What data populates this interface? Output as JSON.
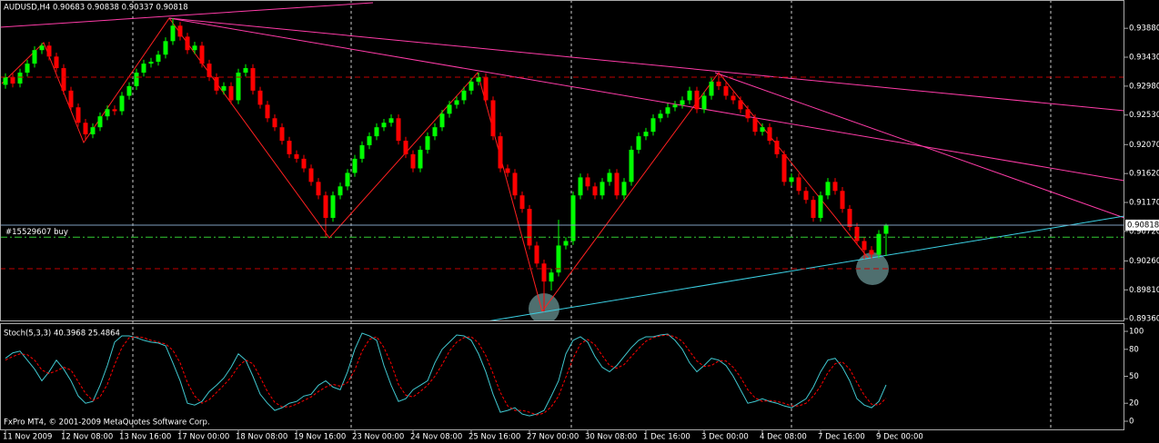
{
  "chart_data": [
    {
      "type": "candlestick",
      "title": "AUDUSD,H4  0.90683 0.90838 0.90337 0.90818",
      "up_color": "#00ff00",
      "down_color": "#ff0000",
      "categories": [
        "11 Nov 2009",
        null,
        null,
        null,
        null,
        null,
        null,
        null,
        "12 Nov 08:00",
        null,
        null,
        null,
        null,
        null,
        null,
        null,
        "13 Nov 16:00",
        null,
        null,
        null,
        null,
        null,
        null,
        null,
        "17 Nov 00:00",
        null,
        null,
        null,
        null,
        null,
        null,
        null,
        "18 Nov 08:00",
        null,
        null,
        null,
        null,
        null,
        null,
        null,
        "19 Nov 16:00",
        null,
        null,
        null,
        null,
        null,
        null,
        null,
        "23 Nov 00:00",
        null,
        null,
        null,
        null,
        null,
        null,
        null,
        "24 Nov 08:00",
        null,
        null,
        null,
        null,
        null,
        null,
        null,
        "25 Nov 16:00",
        null,
        null,
        null,
        null,
        null,
        null,
        null,
        "27 Nov 00:00",
        null,
        null,
        null,
        null,
        null,
        null,
        null,
        "30 Nov 08:00",
        null,
        null,
        null,
        null,
        null,
        null,
        null,
        "1 Dec 16:00",
        null,
        null,
        null,
        null,
        null,
        null,
        null,
        "3 Dec 00:00",
        null,
        null,
        null,
        null,
        null,
        null,
        null,
        "4 Dec 08:00",
        null,
        null,
        null,
        null,
        null,
        null,
        null,
        "7 Dec 16:00",
        null,
        null,
        null,
        null,
        null,
        null,
        null,
        "9 Dec 00:00",
        null
      ],
      "values": [
        [
          0.93,
          0.9318,
          0.9294,
          0.9312
        ],
        [
          0.9312,
          0.9318,
          0.9296,
          0.9302
        ],
        [
          0.9302,
          0.9325,
          0.9296,
          0.9319
        ],
        [
          0.9319,
          0.9339,
          0.9313,
          0.9333
        ],
        [
          0.9333,
          0.936,
          0.9327,
          0.9354
        ],
        [
          0.9354,
          0.9365,
          0.9348,
          0.9361
        ],
        [
          0.9361,
          0.9367,
          0.9338,
          0.9344
        ],
        [
          0.9344,
          0.935,
          0.932,
          0.9326
        ],
        [
          0.9326,
          0.9332,
          0.9285,
          0.9291
        ],
        [
          0.9291,
          0.9297,
          0.9259,
          0.9265
        ],
        [
          0.9265,
          0.9271,
          0.9235,
          0.9241
        ],
        [
          0.9241,
          0.9247,
          0.9213,
          0.9223
        ],
        [
          0.9223,
          0.924,
          0.9217,
          0.9234
        ],
        [
          0.9234,
          0.9257,
          0.9228,
          0.9251
        ],
        [
          0.9251,
          0.9268,
          0.9245,
          0.9262
        ],
        [
          0.9262,
          0.9268,
          0.9253,
          0.9259
        ],
        [
          0.9259,
          0.9289,
          0.9253,
          0.9283
        ],
        [
          0.9283,
          0.9304,
          0.9277,
          0.9298
        ],
        [
          0.9298,
          0.9325,
          0.9292,
          0.9319
        ],
        [
          0.9319,
          0.9339,
          0.9313,
          0.9333
        ],
        [
          0.9333,
          0.9342,
          0.9327,
          0.9336
        ],
        [
          0.9336,
          0.9353,
          0.933,
          0.9347
        ],
        [
          0.9347,
          0.9374,
          0.9341,
          0.9368
        ],
        [
          0.9368,
          0.9404,
          0.9362,
          0.9392
        ],
        [
          0.9392,
          0.9398,
          0.9369,
          0.9375
        ],
        [
          0.9375,
          0.9381,
          0.9348,
          0.9354
        ],
        [
          0.9354,
          0.9367,
          0.9348,
          0.9361
        ],
        [
          0.9361,
          0.9367,
          0.9327,
          0.9333
        ],
        [
          0.9333,
          0.9339,
          0.9306,
          0.9312
        ],
        [
          0.9312,
          0.9318,
          0.9285,
          0.9291
        ],
        [
          0.9291,
          0.9304,
          0.9285,
          0.9298
        ],
        [
          0.9298,
          0.9304,
          0.927,
          0.9276
        ],
        [
          0.9276,
          0.9325,
          0.927,
          0.9319
        ],
        [
          0.9319,
          0.9332,
          0.9313,
          0.9326
        ],
        [
          0.9326,
          0.9332,
          0.9285,
          0.9291
        ],
        [
          0.9291,
          0.9297,
          0.9263,
          0.9269
        ],
        [
          0.9269,
          0.9275,
          0.9242,
          0.9248
        ],
        [
          0.9248,
          0.9254,
          0.9228,
          0.9234
        ],
        [
          0.9234,
          0.924,
          0.9207,
          0.9213
        ],
        [
          0.9213,
          0.9219,
          0.9186,
          0.9192
        ],
        [
          0.9192,
          0.9198,
          0.9179,
          0.9185
        ],
        [
          0.9185,
          0.9191,
          0.9164,
          0.917
        ],
        [
          0.917,
          0.9176,
          0.9143,
          0.9149
        ],
        [
          0.9149,
          0.9155,
          0.9122,
          0.9128
        ],
        [
          0.9128,
          0.9134,
          0.9062,
          0.9093
        ],
        [
          0.9093,
          0.9134,
          0.9087,
          0.9128
        ],
        [
          0.9128,
          0.9148,
          0.9122,
          0.9142
        ],
        [
          0.9142,
          0.9169,
          0.9136,
          0.9163
        ],
        [
          0.9163,
          0.9191,
          0.9157,
          0.9185
        ],
        [
          0.9185,
          0.9212,
          0.9179,
          0.9206
        ],
        [
          0.9206,
          0.9226,
          0.92,
          0.922
        ],
        [
          0.922,
          0.924,
          0.9214,
          0.9234
        ],
        [
          0.9234,
          0.9247,
          0.9228,
          0.9241
        ],
        [
          0.9241,
          0.9254,
          0.9235,
          0.9248
        ],
        [
          0.9248,
          0.9254,
          0.9207,
          0.9213
        ],
        [
          0.9213,
          0.9219,
          0.9186,
          0.9192
        ],
        [
          0.9192,
          0.9198,
          0.9164,
          0.917
        ],
        [
          0.917,
          0.9205,
          0.9164,
          0.9199
        ],
        [
          0.9199,
          0.9226,
          0.9193,
          0.922
        ],
        [
          0.922,
          0.924,
          0.9214,
          0.9234
        ],
        [
          0.9234,
          0.9261,
          0.9228,
          0.9255
        ],
        [
          0.9255,
          0.9275,
          0.9249,
          0.9269
        ],
        [
          0.9269,
          0.9282,
          0.9263,
          0.9276
        ],
        [
          0.9276,
          0.9297,
          0.927,
          0.9291
        ],
        [
          0.9291,
          0.9311,
          0.9285,
          0.9305
        ],
        [
          0.9305,
          0.9319,
          0.9299,
          0.9312
        ],
        [
          0.9312,
          0.9318,
          0.927,
          0.9276
        ],
        [
          0.9276,
          0.9282,
          0.9214,
          0.922
        ],
        [
          0.922,
          0.9226,
          0.9164,
          0.917
        ],
        [
          0.917,
          0.9176,
          0.9157,
          0.9163
        ],
        [
          0.9163,
          0.9169,
          0.9122,
          0.9128
        ],
        [
          0.9128,
          0.9134,
          0.9101,
          0.9107
        ],
        [
          0.9107,
          0.9113,
          0.9044,
          0.905
        ],
        [
          0.905,
          0.9056,
          0.9016,
          0.9022
        ],
        [
          0.9022,
          0.9028,
          0.8947,
          0.8994
        ],
        [
          0.8994,
          0.9014,
          0.898,
          0.9008
        ],
        [
          0.9008,
          0.909,
          0.9002,
          0.905
        ],
        [
          0.905,
          0.9063,
          0.9044,
          0.9057
        ],
        [
          0.9057,
          0.9134,
          0.9051,
          0.9128
        ],
        [
          0.9128,
          0.9162,
          0.9122,
          0.9156
        ],
        [
          0.9156,
          0.9162,
          0.9136,
          0.9142
        ],
        [
          0.9142,
          0.9148,
          0.9122,
          0.9128
        ],
        [
          0.9128,
          0.9155,
          0.9122,
          0.9149
        ],
        [
          0.9149,
          0.9169,
          0.9143,
          0.9163
        ],
        [
          0.9163,
          0.9169,
          0.9122,
          0.9128
        ],
        [
          0.9128,
          0.9155,
          0.9122,
          0.9149
        ],
        [
          0.9149,
          0.9205,
          0.9143,
          0.9199
        ],
        [
          0.9199,
          0.9226,
          0.9193,
          0.922
        ],
        [
          0.922,
          0.9233,
          0.9214,
          0.9227
        ],
        [
          0.9227,
          0.9254,
          0.9221,
          0.9248
        ],
        [
          0.9248,
          0.9261,
          0.9242,
          0.9255
        ],
        [
          0.9255,
          0.9271,
          0.9249,
          0.9265
        ],
        [
          0.9265,
          0.9275,
          0.9259,
          0.9269
        ],
        [
          0.9269,
          0.9282,
          0.9263,
          0.9276
        ],
        [
          0.9276,
          0.9297,
          0.927,
          0.9291
        ],
        [
          0.9291,
          0.9297,
          0.9256,
          0.9262
        ],
        [
          0.9262,
          0.9289,
          0.9256,
          0.9283
        ],
        [
          0.9283,
          0.9311,
          0.9277,
          0.9305
        ],
        [
          0.9305,
          0.9319,
          0.9292,
          0.9298
        ],
        [
          0.9298,
          0.9304,
          0.9277,
          0.9283
        ],
        [
          0.9283,
          0.9289,
          0.927,
          0.9276
        ],
        [
          0.9276,
          0.9282,
          0.9256,
          0.9262
        ],
        [
          0.9262,
          0.9268,
          0.9242,
          0.9248
        ],
        [
          0.9248,
          0.9254,
          0.9221,
          0.9227
        ],
        [
          0.9227,
          0.924,
          0.9221,
          0.9234
        ],
        [
          0.9234,
          0.924,
          0.9207,
          0.9213
        ],
        [
          0.9213,
          0.9219,
          0.9186,
          0.9192
        ],
        [
          0.9192,
          0.9198,
          0.9143,
          0.9149
        ],
        [
          0.9149,
          0.9162,
          0.9143,
          0.9156
        ],
        [
          0.9156,
          0.9162,
          0.9129,
          0.9135
        ],
        [
          0.9135,
          0.9141,
          0.9115,
          0.9121
        ],
        [
          0.9121,
          0.9127,
          0.9087,
          0.9093
        ],
        [
          0.9093,
          0.9134,
          0.9087,
          0.9128
        ],
        [
          0.9128,
          0.9155,
          0.9122,
          0.9149
        ],
        [
          0.9149,
          0.9155,
          0.9129,
          0.9135
        ],
        [
          0.9135,
          0.9141,
          0.9101,
          0.9107
        ],
        [
          0.9107,
          0.9113,
          0.9073,
          0.9079
        ],
        [
          0.9079,
          0.9085,
          0.9051,
          0.9057
        ],
        [
          0.9057,
          0.9063,
          0.9029,
          0.9043
        ],
        [
          0.9043,
          0.9049,
          0.903,
          0.9036
        ],
        [
          0.9036,
          0.9074,
          0.903,
          0.9068
        ],
        [
          0.90683,
          0.90838,
          0.90337,
          0.90818
        ]
      ],
      "ylim": [
        0.8932,
        0.9432
      ],
      "yticks": [
        {
          "value": 0.9388,
          "label": "0.93880"
        },
        {
          "value": 0.9343,
          "label": "0.93430"
        },
        {
          "value": 0.9298,
          "label": "0.92980"
        },
        {
          "value": 0.9253,
          "label": "0.92530"
        },
        {
          "value": 0.9207,
          "label": "0.92070"
        },
        {
          "value": 0.9162,
          "label": "0.91620"
        },
        {
          "value": 0.9117,
          "label": "0.91170"
        },
        {
          "value": 0.9072,
          "label": "0.90720"
        },
        {
          "value": 0.9026,
          "label": "0.90260"
        },
        {
          "value": 0.8981,
          "label": "0.89810"
        },
        {
          "value": 0.8936,
          "label": "0.89360"
        }
      ],
      "bid": {
        "value": 0.90818,
        "label": "0.90818",
        "color": "#7f9fbf"
      },
      "order": {
        "label": "#15529607 buy",
        "value": 0.9063,
        "color": "#33cc33"
      },
      "levels": [
        {
          "value": 0.9312,
          "color": "#c00000"
        },
        {
          "value": 0.9014,
          "color": "#c00000"
        }
      ]
    },
    {
      "type": "line",
      "title": "Stoch(5,3,3) 40.3968 25.4864",
      "annotation": "FxPro MT4, © 2001-2009 MetaQuotes Software Corp.",
      "series": [
        {
          "color": "#40c8d0",
          "dashed": false,
          "values": [
            70,
            76,
            78,
            68,
            58,
            45,
            55,
            68,
            58,
            45,
            28,
            20,
            22,
            40,
            62,
            88,
            95,
            95,
            93,
            90,
            88,
            87,
            84,
            65,
            45,
            20,
            18,
            22,
            33,
            40,
            48,
            60,
            75,
            68,
            50,
            30,
            20,
            12,
            15,
            20,
            22,
            28,
            30,
            40,
            45,
            38,
            35,
            55,
            80,
            98,
            95,
            90,
            62,
            40,
            22,
            25,
            35,
            40,
            45,
            65,
            80,
            88,
            96,
            95,
            90,
            75,
            55,
            30,
            10,
            12,
            15,
            8,
            6,
            8,
            12,
            28,
            45,
            75,
            90,
            94,
            88,
            72,
            60,
            55,
            62,
            72,
            82,
            90,
            94,
            94,
            96,
            97,
            90,
            80,
            65,
            55,
            62,
            70,
            68,
            62,
            50,
            35,
            20,
            22,
            25,
            22,
            20,
            17,
            15,
            20,
            25,
            38,
            55,
            68,
            70,
            60,
            45,
            25,
            18,
            15,
            22,
            40.3968
          ]
        },
        {
          "color": "#ff0000",
          "dashed": true,
          "values": [
            68,
            72,
            75,
            74,
            68,
            57,
            53,
            56,
            60,
            57,
            44,
            31,
            23,
            27,
            41,
            63,
            82,
            93,
            94,
            93,
            90,
            88,
            86,
            79,
            65,
            43,
            28,
            20,
            24,
            32,
            40,
            49,
            61,
            68,
            64,
            49,
            33,
            21,
            16,
            16,
            19,
            23,
            27,
            33,
            38,
            41,
            39,
            43,
            57,
            78,
            91,
            94,
            82,
            64,
            41,
            29,
            27,
            33,
            40,
            50,
            63,
            78,
            88,
            93,
            94,
            87,
            73,
            53,
            32,
            17,
            12,
            12,
            10,
            7,
            9,
            16,
            28,
            49,
            70,
            86,
            91,
            85,
            73,
            62,
            59,
            63,
            72,
            81,
            89,
            93,
            95,
            96,
            94,
            89,
            78,
            67,
            61,
            62,
            67,
            67,
            60,
            49,
            35,
            26,
            22,
            23,
            22,
            20,
            17,
            17,
            20,
            28,
            39,
            54,
            64,
            66,
            58,
            43,
            29,
            19,
            18,
            25.4864
          ]
        }
      ],
      "ylim": [
        -10.1,
        109.1
      ],
      "yticks": [
        0,
        20,
        50,
        80,
        100
      ]
    }
  ]
}
